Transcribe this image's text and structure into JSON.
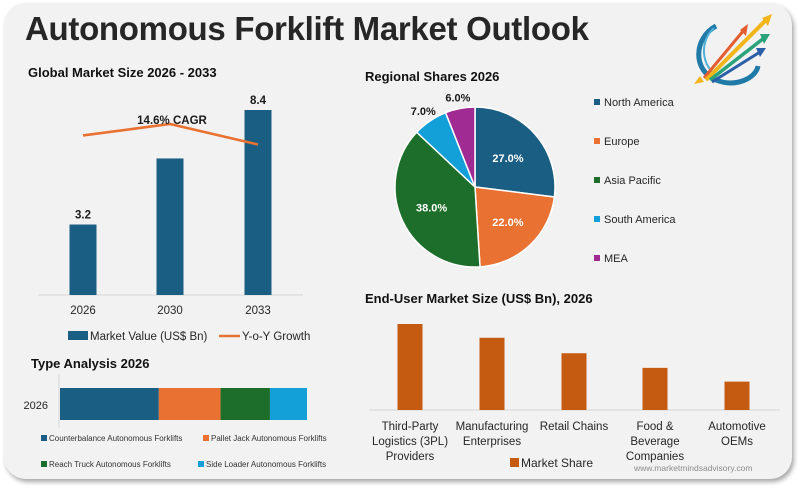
{
  "header": {
    "title": "Autonomous Forklift Market Outlook",
    "logo_icon": "growth-arrows-logo-icon"
  },
  "footer": {
    "website": "www.marketmindsadvisory.com"
  },
  "colors": {
    "card_bg": "#f2f2f2",
    "navy": "#1b5e83",
    "orange": "#e97132",
    "green": "#1e6e2b",
    "sky": "#139fd8",
    "magenta": "#a02b93",
    "rust": "#c55a11",
    "line_orange": "#e97132"
  },
  "chart_data": [
    {
      "id": "global-market-size",
      "type": "bar",
      "title": "Global Market Size 2026 - 2033",
      "categories": [
        "2026",
        "2030",
        "2033"
      ],
      "series": [
        {
          "name": "Market Value (US$ Bn)",
          "type": "bar",
          "values": [
            3.2,
            6.2,
            8.4
          ],
          "data_labels": [
            "3.2",
            "",
            "8.4"
          ],
          "color": "#1b5e83"
        },
        {
          "name": "Y-o-Y Growth",
          "type": "line",
          "values": [
            0.7,
            0.75,
            0.66
          ],
          "color": "#e97132"
        }
      ],
      "annotations": [
        "14.6% CAGR"
      ],
      "ylim": [
        0,
        8.4
      ],
      "xlabel": "",
      "ylabel": "",
      "grid": false,
      "legend": "bottom"
    },
    {
      "id": "regional-shares",
      "type": "pie",
      "title": "Regional Shares 2026",
      "categories": [
        "North America",
        "Europe",
        "Asia Pacific",
        "South America",
        "MEA"
      ],
      "values": [
        27.0,
        22.0,
        38.0,
        7.0,
        6.0
      ],
      "labels": [
        "27.0%",
        "22.0%",
        "38.0%",
        "7.0%",
        "6.0%"
      ],
      "colors": [
        "#1b5e83",
        "#e97132",
        "#1e6e2b",
        "#139fd8",
        "#a02b93"
      ],
      "legend": "right"
    },
    {
      "id": "type-analysis",
      "type": "bar",
      "orientation": "horizontal-stacked",
      "title": "Type Analysis 2026",
      "categories": [
        "2026"
      ],
      "series": [
        {
          "name": "Counterbalance Autonomous Forklifts",
          "values": [
            40
          ],
          "color": "#1b5e83"
        },
        {
          "name": "Pallet Jack Autonomous Forklifts",
          "values": [
            25
          ],
          "color": "#e97132"
        },
        {
          "name": "Reach Truck Autonomous Forklifts",
          "values": [
            20
          ],
          "color": "#1e6e2b"
        },
        {
          "name": "Side Loader Autonomous Forklifts",
          "values": [
            15
          ],
          "color": "#139fd8"
        }
      ],
      "unit": "percent share (estimated)",
      "legend": "bottom"
    },
    {
      "id": "end-user-market-size",
      "type": "bar",
      "title": "End-User Market Size (US$ Bn), 2026",
      "categories": [
        [
          "Third-Party",
          "Logistics (3PL)",
          "Providers"
        ],
        [
          "Manufacturing",
          "Enterprises"
        ],
        [
          "Retail Chains"
        ],
        [
          "Food &",
          "Beverage",
          "Companies"
        ],
        [
          "Automotive",
          "OEMs"
        ]
      ],
      "series": [
        {
          "name": "Market Share",
          "values": [
            1.0,
            0.84,
            0.66,
            0.49,
            0.33
          ],
          "color": "#c55a11"
        }
      ],
      "unit": "relative (no axis values shown)",
      "legend": "bottom"
    }
  ]
}
